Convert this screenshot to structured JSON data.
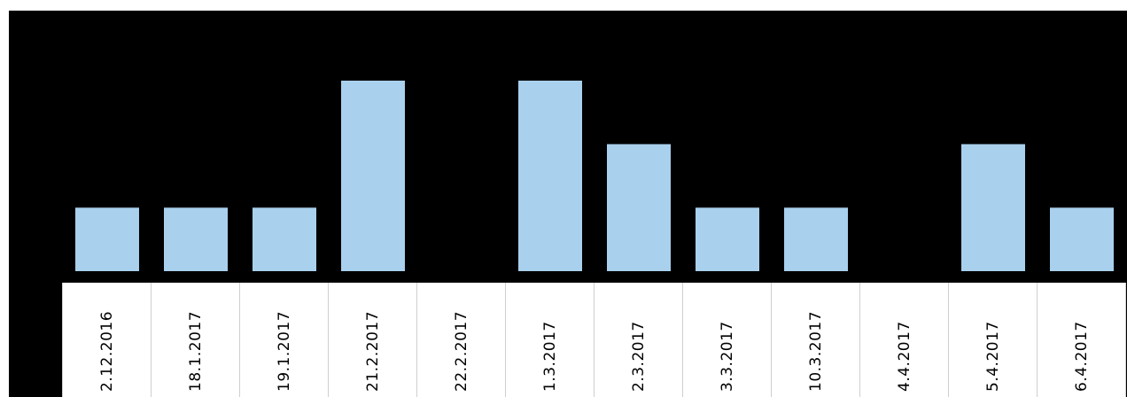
{
  "chart_data": {
    "type": "bar",
    "categories": [
      "2.12.2016",
      "18.1.2017",
      "19.1.2017",
      "21.2.2017",
      "22.2.2017",
      "1.3.2017",
      "2.3.2017",
      "3.3.2017",
      "10.3.2017",
      "4.4.2017",
      "5.4.2017",
      "6.4.2017"
    ],
    "values": [
      1,
      1,
      1,
      3,
      0,
      3,
      2,
      1,
      1,
      0,
      2,
      1
    ],
    "ylim": [
      0,
      3.3
    ],
    "grid": false,
    "title": "",
    "xlabel": "",
    "ylabel": "",
    "colors": {
      "background": "#000000",
      "bar": "#a9d0ed",
      "category_band": "#ffffff",
      "band_divider": "#cfcfcf",
      "text": "#000000"
    }
  }
}
